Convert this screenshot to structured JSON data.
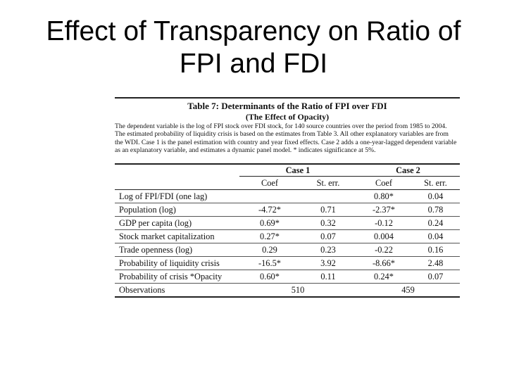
{
  "slide": {
    "title_line1": "Effect of Transparency on Ratio of",
    "title_line2": "FPI and FDI"
  },
  "table": {
    "title": "Table 7: Determinants of the Ratio of FPI over FDI",
    "subtitle": "(The Effect of Opacity)",
    "note": "The dependent variable is the log of FPI stock over FDI stock, for 140 source countries over the period from 1985 to 2004. The estimated probability of liquidity crisis is based on the estimates from Table 3. All other explanatory variables are from the WDI. Case 1 is the panel estimation with country and year fixed effects. Case 2 adds a one-year-lagged dependent variable as an explanatory variable, and estimates a dynamic panel model. * indicates significance at 5%.",
    "case1": "Case 1",
    "case2": "Case 2",
    "col_coef": "Coef",
    "col_se": "St. err.",
    "rows": [
      {
        "label": "Log of FPI/FDI (one lag)",
        "c1_coef": "",
        "c1_se": "",
        "c2_coef": "0.80*",
        "c2_se": "0.04"
      },
      {
        "label": "Population (log)",
        "c1_coef": "-4.72*",
        "c1_se": "0.71",
        "c2_coef": "-2.37*",
        "c2_se": "0.78"
      },
      {
        "label": "GDP per capita (log)",
        "c1_coef": "0.69*",
        "c1_se": "0.32",
        "c2_coef": "-0.12",
        "c2_se": "0.24"
      },
      {
        "label": "Stock market capitalization",
        "c1_coef": "0.27*",
        "c1_se": "0.07",
        "c2_coef": "0.004",
        "c2_se": "0.04"
      },
      {
        "label": "Trade openness (log)",
        "c1_coef": "0.29",
        "c1_se": "0.23",
        "c2_coef": "-0.22",
        "c2_se": "0.16"
      },
      {
        "label": "Probability of liquidity crisis",
        "c1_coef": "-16.5*",
        "c1_se": "3.92",
        "c2_coef": "-8.66*",
        "c2_se": "2.48"
      },
      {
        "label": "Probability of crisis *Opacity",
        "c1_coef": "0.60*",
        "c1_se": "0.11",
        "c2_coef": "0.24*",
        "c2_se": "0.07"
      }
    ],
    "observations_label": "Observations",
    "observations_c1": "510",
    "observations_c2": "459"
  }
}
